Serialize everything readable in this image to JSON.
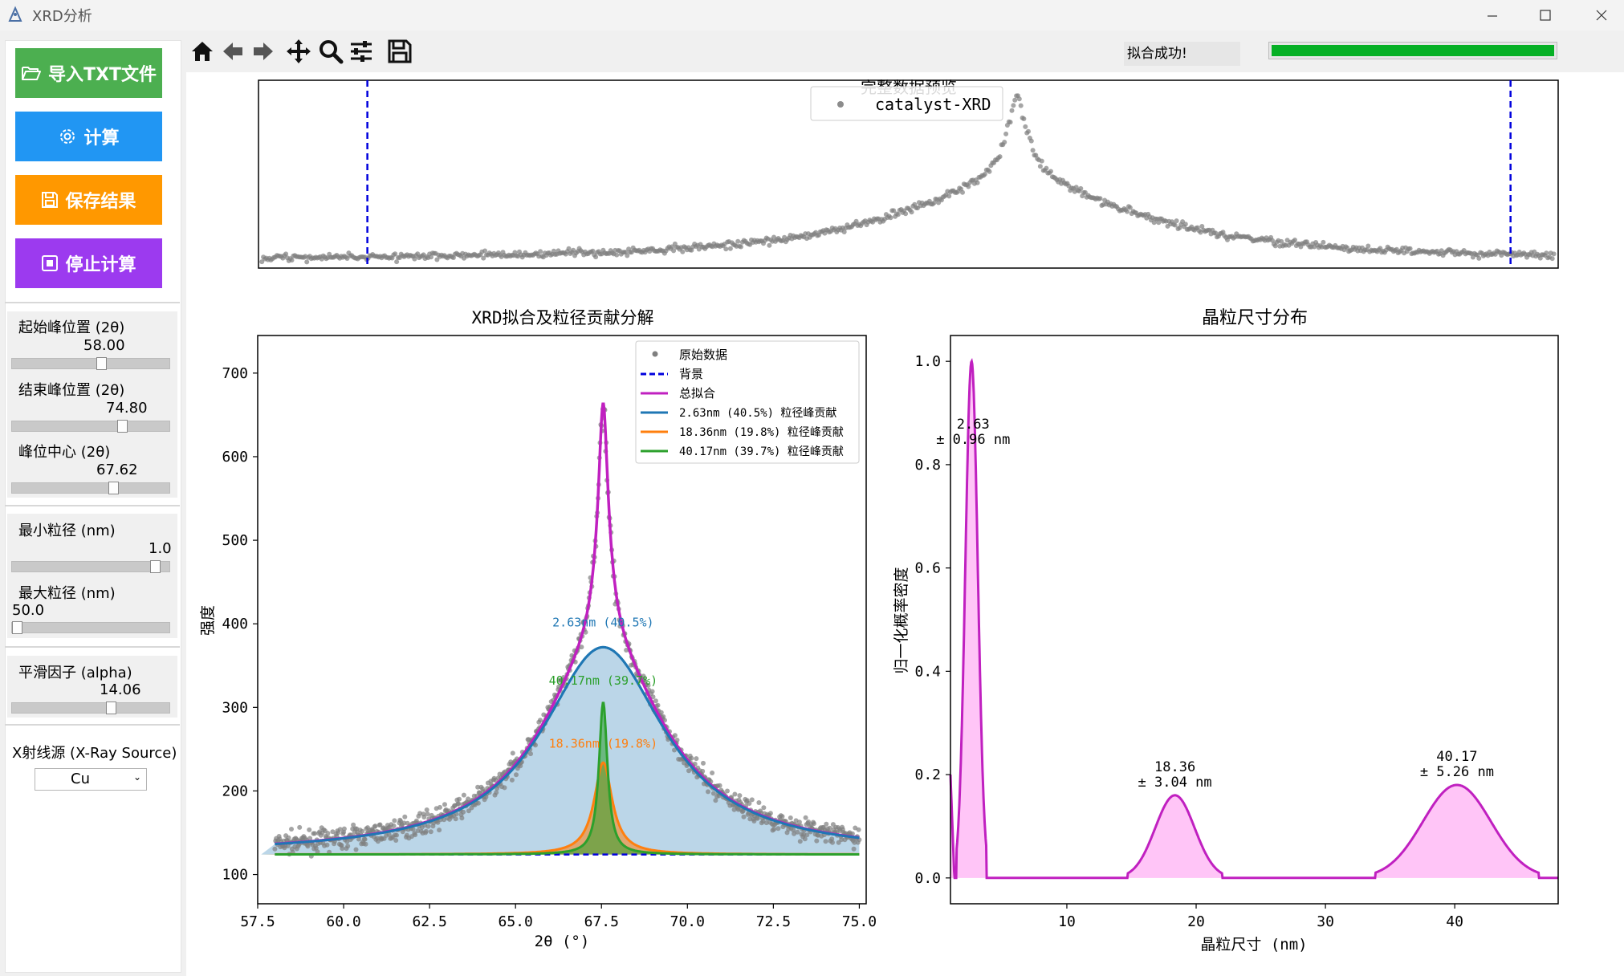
{
  "window": {
    "title": "XRD分析"
  },
  "toolbar": {
    "icons": [
      "home-icon",
      "back-icon",
      "forward-icon",
      "pan-icon",
      "zoom-icon",
      "configure-icon",
      "save-icon"
    ]
  },
  "sidebar": {
    "import_label": "导入TXT文件",
    "calculate_label": "计算",
    "save_label": "保存结果",
    "stop_label": "停止计算",
    "start_peak": {
      "label": "起始峰位置 (2θ)",
      "value": "58.00",
      "fraction": 0.57
    },
    "end_peak": {
      "label": "结束峰位置 (2θ)",
      "value": "74.80",
      "fraction": 0.71
    },
    "peak_center": {
      "label": "峰位中心 (2θ)",
      "value": "67.62",
      "fraction": 0.65
    },
    "min_size": {
      "label": "最小粒径 (nm)",
      "value": "1.0",
      "fraction": 0.93
    },
    "max_size": {
      "label": "最大粒径 (nm)",
      "value": "50.0",
      "fraction": 0.0
    },
    "smoothing": {
      "label": "平滑因子 (alpha)",
      "value": "14.06",
      "fraction": 0.63
    },
    "xray": {
      "label": "X射线源 (X-Ray Source)",
      "value": "Cu"
    }
  },
  "colors": {
    "import": "#4caf50",
    "calculate": "#2196f3",
    "save": "#ff9800",
    "stop": "#9c3aef",
    "progress": "#06b025",
    "fit": "#c020c0"
  },
  "status": {
    "message": "拟合成功!",
    "progress": 1.0
  },
  "chart_data": [
    {
      "type": "scatter",
      "title": "完整数据预览",
      "legend": [
        "catalyst-XRD"
      ],
      "legend_position": "top-center",
      "markers": {
        "left_cutoff": 58.0,
        "right_cutoff": 74.8
      },
      "note": "raw data with dashed blue vertical lines marking the start and end peak positions"
    },
    {
      "type": "line",
      "title": "XRD拟合及粒径贡献分解",
      "xlabel": "2θ (°)",
      "ylabel": "强度",
      "xlim": [
        57.5,
        75.2
      ],
      "ylim": [
        65,
        745
      ],
      "xticks": [
        "57.5",
        "60.0",
        "62.5",
        "65.0",
        "67.5",
        "70.0",
        "72.5",
        "75.0"
      ],
      "yticks": [
        "100",
        "200",
        "300",
        "400",
        "500",
        "600",
        "700"
      ],
      "legend_position": "top-right",
      "legend": [
        "原始数据",
        "背景",
        "总拟合",
        "2.63nm (40.5%) 粒径峰贡献",
        "18.36nm (19.8%) 粒径峰贡献",
        "40.17nm (39.7%) 粒径峰贡献"
      ],
      "background": 124,
      "peak_center": 67.55,
      "series": [
        {
          "name": "2.63nm (40.5%) 粒径峰贡献",
          "color": "#1f77b4",
          "height": 248,
          "hwhm": 2.2
        },
        {
          "name": "18.36nm (19.8%) 粒径峰贡献",
          "color": "#ff7f0e",
          "height": 110,
          "hwhm": 0.32
        },
        {
          "name": "40.17nm (39.7%) 粒径峰贡献",
          "color": "#2ca02c",
          "height": 182,
          "hwhm": 0.15
        },
        {
          "name": "总拟合",
          "color": "#c020c0",
          "max": 665
        }
      ],
      "annotations": [
        {
          "text": "2.63nm (40.5%)",
          "x": 67.55,
          "y": 397,
          "color": "#1f77b4"
        },
        {
          "text": "40.17nm (39.7%)",
          "x": 67.55,
          "y": 327,
          "color": "#2ca02c"
        },
        {
          "text": "18.36nm (19.8%)",
          "x": 67.55,
          "y": 252,
          "color": "#ff7f0e"
        }
      ]
    },
    {
      "type": "area",
      "title": "晶粒尺寸分布",
      "xlabel": "晶粒尺寸 (nm)",
      "ylabel": "归一化概率密度",
      "xlim": [
        1,
        48
      ],
      "ylim": [
        -0.05,
        1.05
      ],
      "xticks": [
        "10",
        "20",
        "30",
        "40"
      ],
      "yticks": [
        "0.0",
        "0.2",
        "0.4",
        "0.6",
        "0.8",
        "1.0"
      ],
      "peaks": [
        {
          "x": 2.63,
          "sd": 0.48,
          "y": 1.0,
          "label1": "2.63",
          "label2": "± 0.96 nm"
        },
        {
          "x": 18.36,
          "sd": 1.52,
          "y": 0.16,
          "label1": "18.36",
          "label2": "± 3.04 nm"
        },
        {
          "x": 40.17,
          "sd": 2.63,
          "y": 0.18,
          "label1": "40.17",
          "label2": "± 5.26 nm"
        }
      ]
    }
  ]
}
